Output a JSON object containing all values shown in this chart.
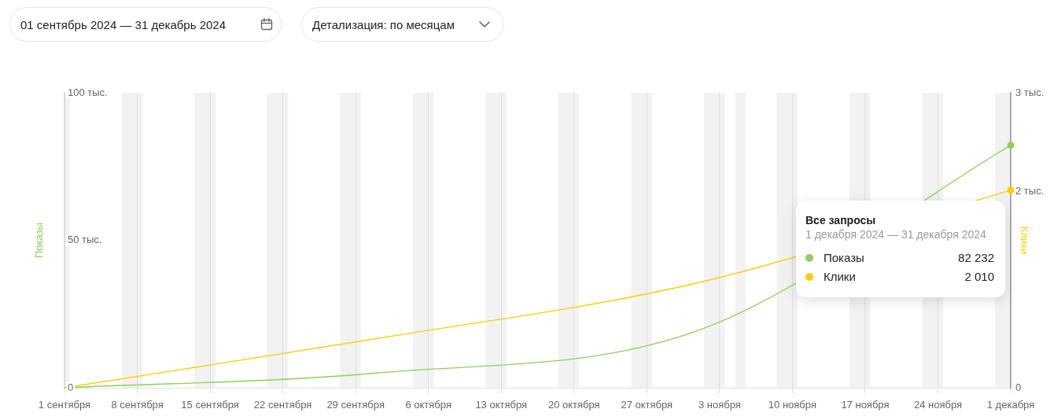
{
  "chart_data": {
    "type": "line",
    "x": [
      "2024-09-01",
      "2024-10-01",
      "2024-11-01",
      "2024-12-01"
    ],
    "series": [
      {
        "name": "Показы",
        "color": "#8fcf5a",
        "values": [
          0,
          5,
          19.5,
          82.232
        ]
      },
      {
        "name": "Клики",
        "color": "#ffcc00",
        "values": [
          0,
          0.5,
          1.07,
          2.01
        ],
        "axis": "y2"
      },
      {
        "type": "scatter",
        "x": [
          "2024-12-01"
        ],
        "values": [
          82.232
        ],
        "color": "#8fcf5a",
        "marker": "circle"
      },
      {
        "type": "scatter",
        "x": [
          "2024-12-01"
        ],
        "values": [
          2.01
        ],
        "color": "#ffcc00",
        "marker": "circle",
        "axis": "y2"
      }
    ],
    "ylabel": "Показы",
    "y2label": "Клики",
    "xlim": [
      "2024-09-01",
      "2024-12-01"
    ],
    "xticks": [
      {
        "value": "2024-09-01",
        "label": "1 сентября"
      },
      {
        "value": "2024-09-08",
        "label": "8 сентября"
      },
      {
        "value": "2024-09-15",
        "label": "15 сентября"
      },
      {
        "value": "2024-09-22",
        "label": "22 сентября"
      },
      {
        "value": "2024-09-29",
        "label": "29 сентября"
      },
      {
        "value": "2024-10-06",
        "label": "6 октября"
      },
      {
        "value": "2024-10-13",
        "label": "13 октября"
      },
      {
        "value": "2024-10-20",
        "label": "20 октября"
      },
      {
        "value": "2024-10-27",
        "label": "27 октября"
      },
      {
        "value": "2024-11-03",
        "label": "3 ноября"
      },
      {
        "value": "2024-11-10",
        "label": "10 ноября"
      },
      {
        "value": "2024-11-17",
        "label": "17 ноября"
      },
      {
        "value": "2024-11-24",
        "label": "24 ноября"
      },
      {
        "value": "2024-12-01",
        "label": "1 декабря"
      }
    ],
    "ylim": [
      0,
      100
    ],
    "yticks": [
      0,
      {
        "value": 50,
        "label": "50 тыс."
      },
      {
        "value": 100,
        "label": "100 тыс."
      }
    ],
    "y2lim": [
      0,
      3
    ],
    "y2ticks": [
      0,
      {
        "value": 2,
        "label": "2 тыс."
      },
      {
        "value": 3,
        "label": "3 тыс."
      }
    ],
    "grid": "x",
    "legend": "right",
    "bands": [
      {
        "axis": "x",
        "from": "2024-09-01",
        "to": "2024-09-01T12:00",
        "color": "#f2f2f2"
      },
      {
        "axis": "x",
        "from": "2024-09-06T12:00",
        "to": "2024-09-08T12:00",
        "color": "#f2f2f2"
      },
      {
        "axis": "x",
        "from": "2024-09-13T12:00",
        "to": "2024-09-15T12:00",
        "color": "#f2f2f2"
      },
      {
        "axis": "x",
        "from": "2024-09-20T12:00",
        "to": "2024-09-22T12:00",
        "color": "#f2f2f2"
      },
      {
        "axis": "x",
        "from": "2024-09-27T12:00",
        "to": "2024-09-29T12:00",
        "color": "#f2f2f2"
      },
      {
        "axis": "x",
        "from": "2024-10-04T12:00",
        "to": "2024-10-06T12:00",
        "color": "#f2f2f2"
      },
      {
        "axis": "x",
        "from": "2024-10-11T12:00",
        "to": "2024-10-13T12:00",
        "color": "#f2f2f2"
      },
      {
        "axis": "x",
        "from": "2024-10-18T12:00",
        "to": "2024-10-20T12:00",
        "color": "#f2f2f2"
      },
      {
        "axis": "x",
        "from": "2024-10-25T12:00",
        "to": "2024-10-27T12:00",
        "color": "#f2f2f2"
      },
      {
        "axis": "x",
        "from": "2024-11-01T12:00",
        "to": "2024-11-03T12:00",
        "color": "#f2f2f2"
      },
      {
        "axis": "x",
        "from": "2024-11-04T12:00",
        "to": "2024-11-05T12:00",
        "color": "#f2f2f2"
      },
      {
        "axis": "x",
        "from": "2024-11-08T12:00",
        "to": "2024-11-10T12:00",
        "color": "#f2f2f2"
      },
      {
        "axis": "x",
        "from": "2024-11-15T12:00",
        "to": "2024-11-17T12:00",
        "color": "#f2f2f2"
      },
      {
        "axis": "x",
        "from": "2024-11-22T12:00",
        "to": "2024-11-24T12:00",
        "color": "#f2f2f2"
      },
      {
        "axis": "x",
        "from": "2024-11-29T12:00",
        "to": "2024-12-01",
        "color": "#f2f2f2"
      }
    ],
    "annotations": [
      "01 сентябрь 2024 — 31 декабрь 2024",
      "Детализация: по месяцам",
      "Все запросы",
      "1 декабря 2024 — 31 декабря 2024",
      "82 232",
      "2 010"
    ]
  }
}
